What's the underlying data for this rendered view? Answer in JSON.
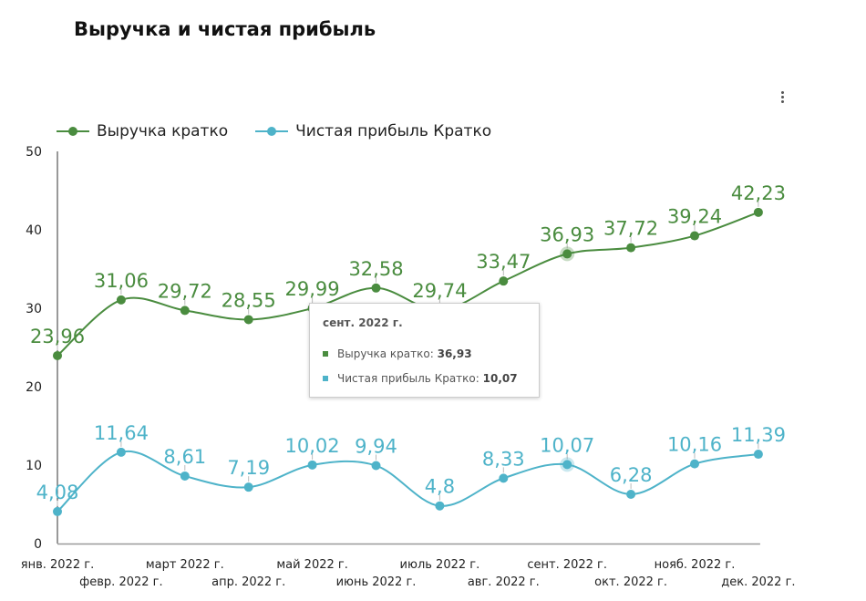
{
  "title": "Выручка и чистая прибыль",
  "menu_icon": "more-vert-icon",
  "tooltip": {
    "title": "сент. 2022 г.",
    "rows": [
      {
        "label": "Выручка кратко: ",
        "value": "36,93"
      },
      {
        "label": "Чистая прибыль Кратко: ",
        "value": "10,07"
      }
    ]
  },
  "chart_data": {
    "type": "line",
    "title": "Выручка и чистая прибыль",
    "categories": [
      "янв. 2022 г.",
      "февр. 2022 г.",
      "март 2022 г.",
      "апр. 2022 г.",
      "май 2022 г.",
      "июнь 2022 г.",
      "июль 2022 г.",
      "авг. 2022 г.",
      "сент. 2022 г.",
      "окт. 2022 г.",
      "нояб. 2022 г.",
      "дек. 2022 г."
    ],
    "series": [
      {
        "name": "Выручка кратко",
        "color": "#4a8c3f",
        "values": [
          23.96,
          31.06,
          29.72,
          28.55,
          29.99,
          32.58,
          29.74,
          33.47,
          36.93,
          37.72,
          39.24,
          42.23
        ],
        "labels": [
          "23,96",
          "31,06",
          "29,72",
          "28,55",
          "29,99",
          "32,58",
          "29,74",
          "33,47",
          "36,93",
          "37,72",
          "39,24",
          "42,23"
        ]
      },
      {
        "name": "Чистая прибыль Кратко",
        "color": "#4eb3c9",
        "values": [
          4.08,
          11.64,
          8.61,
          7.19,
          10.02,
          9.94,
          4.8,
          8.33,
          10.07,
          6.28,
          10.16,
          11.39
        ],
        "labels": [
          "4,08",
          "11,64",
          "8,61",
          "7,19",
          "10,02",
          "9,94",
          "4,8",
          "8,33",
          "10,07",
          "6,28",
          "10,16",
          "11,39"
        ]
      }
    ],
    "yticks": [
      "0",
      "10",
      "20",
      "30",
      "40",
      "50"
    ],
    "ylim": [
      0,
      50
    ],
    "legend": "top-left",
    "grid": false,
    "highlighted_category": "сент. 2022 г."
  }
}
